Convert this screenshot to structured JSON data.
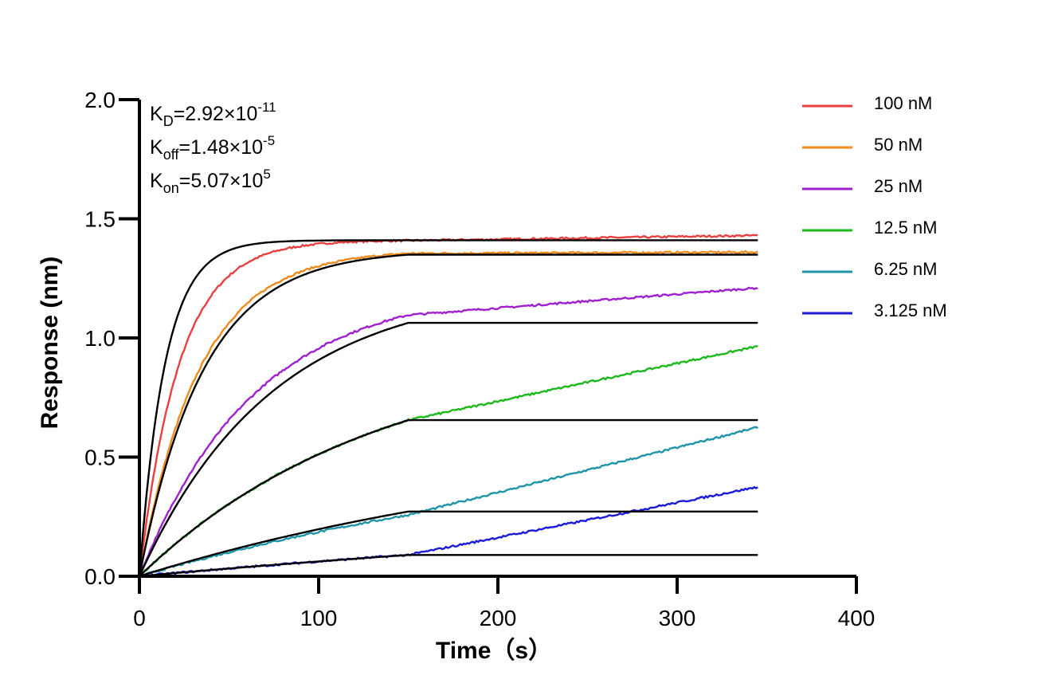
{
  "chart_data": {
    "type": "line",
    "xlabel": "Time（s）",
    "ylabel": "Response (nm)",
    "xlim": [
      0,
      400
    ],
    "ylim": [
      0,
      2.0
    ],
    "x_ticks": [
      "0",
      "100",
      "200",
      "300",
      "400"
    ],
    "y_ticks": [
      "0.0",
      "0.5",
      "1.0",
      "1.5",
      "2.0"
    ],
    "grid": false,
    "legend_position": "top-right",
    "annotations": [
      {
        "main": "K",
        "sub": "D",
        "value": "=2.92×10",
        "exp": "-11"
      },
      {
        "main": "K",
        "sub": "off",
        "value": "=1.48×10",
        "exp": "-5"
      },
      {
        "main": "K",
        "sub": "on",
        "value": "=5.07×10",
        "exp": "5"
      }
    ],
    "association_end": 150,
    "end_time": 345,
    "series": [
      {
        "name": "100 nM",
        "color": "#e8403f",
        "plateau_measured": 1.41,
        "end_measured": 1.43,
        "kobs": 0.045,
        "fit_plateau": 1.41,
        "fit_kobs": 0.07
      },
      {
        "name": "50 nM",
        "color": "#f08a1c",
        "plateau_measured": 1.37,
        "end_measured": 1.36,
        "kobs": 0.03,
        "fit_plateau": 1.37,
        "fit_kobs": 0.028
      },
      {
        "name": "25 nM",
        "color": "#a020d0",
        "plateau_measured": 1.215,
        "end_measured": 1.21,
        "kobs": 0.0155,
        "fit_plateau": 1.225,
        "fit_kobs": 0.0135
      },
      {
        "name": "12.5 nM",
        "color": "#1cb81c",
        "plateau_measured": 0.97,
        "end_measured": 0.965,
        "kobs": 0.0075,
        "fit_plateau": 0.97,
        "fit_kobs": 0.0075
      },
      {
        "name": "6.25 nM",
        "color": "#1e95a8",
        "plateau_measured": 0.63,
        "end_measured": 0.625,
        "kobs": 0.0035,
        "fit_plateau": 0.625,
        "fit_kobs": 0.0038
      },
      {
        "name": "3.125 nM",
        "color": "#1a1ad8",
        "plateau_measured": 0.378,
        "end_measured": 0.375,
        "kobs": 0.0018,
        "fit_plateau": 0.378,
        "fit_kobs": 0.0018
      }
    ],
    "fit_color": "#000000"
  }
}
